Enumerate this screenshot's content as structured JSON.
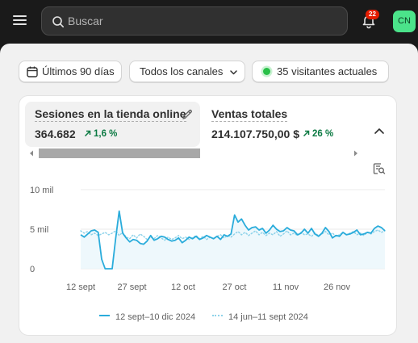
{
  "topbar": {
    "search_placeholder": "Buscar",
    "notifications_count": "22",
    "avatar_initials": "CN"
  },
  "filters": {
    "date_range": "Últimos 90 días",
    "channels": "Todos los canales",
    "live_visitors": "35 visitantes actuales"
  },
  "metrics": [
    {
      "label": "Sesiones en la tienda online",
      "value": "364.682",
      "delta": "1,6 %"
    },
    {
      "label": "Ventas totales",
      "value": "214.107.750,00 $",
      "delta": "26 %"
    }
  ],
  "chart_data": {
    "type": "line",
    "yticks": [
      "10 mil",
      "5 mil",
      "0"
    ],
    "ylim": [
      0,
      10000
    ],
    "xticks": [
      "12 sept",
      "27 sept",
      "12 oct",
      "27 oct",
      "11 nov",
      "26 nov"
    ],
    "grid": true,
    "legend_position": "bottom",
    "series": [
      {
        "name": "12 sept–10 dic 2024",
        "color": "#2aacdb",
        "style": "solid",
        "values": [
          4300,
          4000,
          4400,
          4800,
          4900,
          4600,
          1200,
          0,
          0,
          0,
          3800,
          7300,
          4500,
          3900,
          3400,
          3700,
          3600,
          3200,
          3100,
          3500,
          4200,
          3600,
          3800,
          4100,
          4000,
          3700,
          3500,
          3600,
          3900,
          3300,
          3600,
          4000,
          3800,
          4100,
          3700,
          3900,
          4200,
          4000,
          3800,
          4100,
          3700,
          4300,
          4100,
          4400,
          6800,
          5900,
          6300,
          5500,
          4900,
          5200,
          5300,
          4900,
          5100,
          4500,
          4900,
          5500,
          5000,
          4700,
          4800,
          5200,
          4900,
          4800,
          4300,
          4500,
          5000,
          4500,
          5100,
          4400,
          4100,
          4500,
          5200,
          4700,
          3900,
          4200,
          4100,
          4600,
          4300,
          4400,
          4600,
          4900,
          4300,
          4400,
          4600,
          4500,
          5100,
          5400,
          5200,
          4800
        ]
      },
      {
        "name": "14 jun–11 sept 2024",
        "color": "#8fd3ea",
        "style": "dotted",
        "values": [
          4800,
          4500,
          4700,
          4300,
          4500,
          4200,
          4400,
          4600,
          4300,
          4500,
          4800,
          4200,
          4600,
          4000,
          3800,
          4300,
          3900,
          4400,
          4100,
          3700,
          4000,
          3800,
          4200,
          3900,
          3600,
          4000,
          3700,
          3900,
          4200,
          3800,
          4000,
          3700,
          3900,
          4200,
          3800,
          4100,
          3700,
          4000,
          3800,
          4100,
          4300,
          3900,
          4200,
          4000,
          4400,
          4700,
          4300,
          4600,
          4200,
          4500,
          4800,
          4300,
          4600,
          4200,
          4500,
          4300,
          4700,
          4100,
          4400,
          4800,
          4300,
          4500,
          4200,
          4600,
          4300,
          4400,
          4100,
          4500,
          4200,
          4400,
          4700,
          4300,
          4500,
          4100,
          4300,
          4600,
          4300,
          4500,
          4700,
          4300,
          4500,
          4200,
          4600,
          4400,
          4700,
          4900,
          4600,
          4800
        ]
      }
    ]
  },
  "legend": {
    "current": "12 sept–10 dic 2024",
    "previous": "14 jun–11 sept 2024"
  }
}
